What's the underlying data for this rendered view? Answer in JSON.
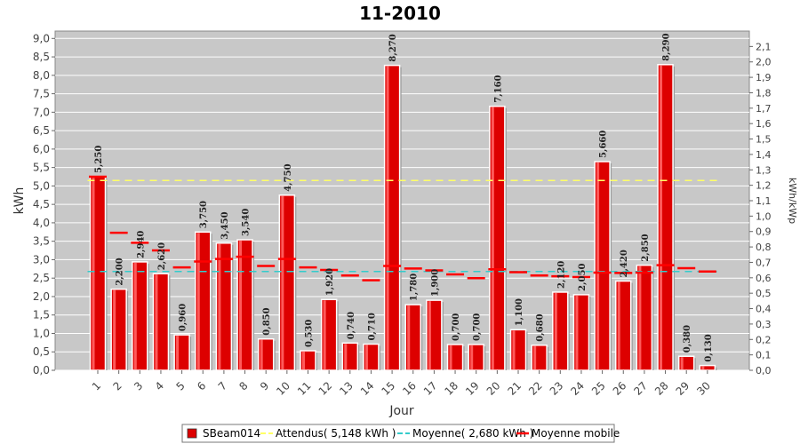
{
  "chart_data": {
    "type": "bar",
    "title": "11-2010",
    "xlabel": "Jour",
    "ylabel": "kWh",
    "y2label": "kWh/kWp",
    "ylim": [
      0,
      9.2
    ],
    "y2lim": [
      0,
      2.2
    ],
    "yticks": [
      "0,0",
      "0,5",
      "1,0",
      "1,5",
      "2,0",
      "2,5",
      "3,0",
      "3,5",
      "4,0",
      "4,5",
      "5,0",
      "5,5",
      "6,0",
      "6,5",
      "7,0",
      "7,5",
      "8,0",
      "8,5",
      "9,0"
    ],
    "y2ticks": [
      "0,0",
      "0,1",
      "0,2",
      "0,3",
      "0,4",
      "0,5",
      "0,6",
      "0,7",
      "0,8",
      "0,9",
      "1,0",
      "1,1",
      "1,2",
      "1,3",
      "1,4",
      "1,5",
      "1,6",
      "1,7",
      "1,8",
      "1,9",
      "2,0",
      "2,1"
    ],
    "categories": [
      "1",
      "2",
      "3",
      "4",
      "5",
      "6",
      "7",
      "8",
      "9",
      "10",
      "11",
      "12",
      "13",
      "14",
      "15",
      "16",
      "17",
      "18",
      "19",
      "20",
      "21",
      "22",
      "23",
      "24",
      "25",
      "26",
      "27",
      "28",
      "29",
      "30"
    ],
    "series": [
      {
        "name": "SBeam014",
        "color": "#dd0000",
        "values": [
          5.25,
          2.2,
          2.94,
          2.62,
          0.96,
          3.75,
          3.45,
          3.54,
          0.85,
          4.75,
          0.53,
          1.92,
          0.74,
          0.71,
          8.27,
          1.78,
          1.9,
          0.7,
          0.7,
          7.16,
          1.1,
          0.68,
          2.12,
          2.05,
          5.66,
          2.42,
          2.85,
          8.29,
          0.38,
          0.13
        ],
        "labels": [
          "5,250",
          "2,200",
          "2,940",
          "2,620",
          "0,960",
          "3,750",
          "3,450",
          "3,540",
          "0,850",
          "4,750",
          "0,530",
          "1,920",
          "0,740",
          "0,710",
          "8,270",
          "1,780",
          "1,900",
          "0,700",
          "0,700",
          "7,160",
          "1,100",
          "0,680",
          "2,120",
          "2,050",
          "5,660",
          "2,420",
          "2,850",
          "8,290",
          "0,380",
          "0,130"
        ]
      },
      {
        "name": "Attendus( 5,148 kWh )",
        "color": "#ffff66",
        "value": 5.148
      },
      {
        "name": "Moyenne( 2,680 kWh )",
        "color": "#33cccc",
        "value": 2.68
      },
      {
        "name": "Moyenne mobile",
        "color": "#ff0000",
        "values": [
          5.25,
          3.73,
          3.46,
          3.25,
          2.79,
          2.95,
          3.02,
          3.08,
          2.83,
          3.02,
          2.79,
          2.72,
          2.57,
          2.44,
          2.83,
          2.76,
          2.71,
          2.6,
          2.5,
          2.74,
          2.66,
          2.57,
          2.55,
          2.53,
          2.65,
          2.64,
          2.65,
          2.85,
          2.77,
          2.68
        ]
      }
    ],
    "grid": true,
    "legend": "bottom"
  }
}
